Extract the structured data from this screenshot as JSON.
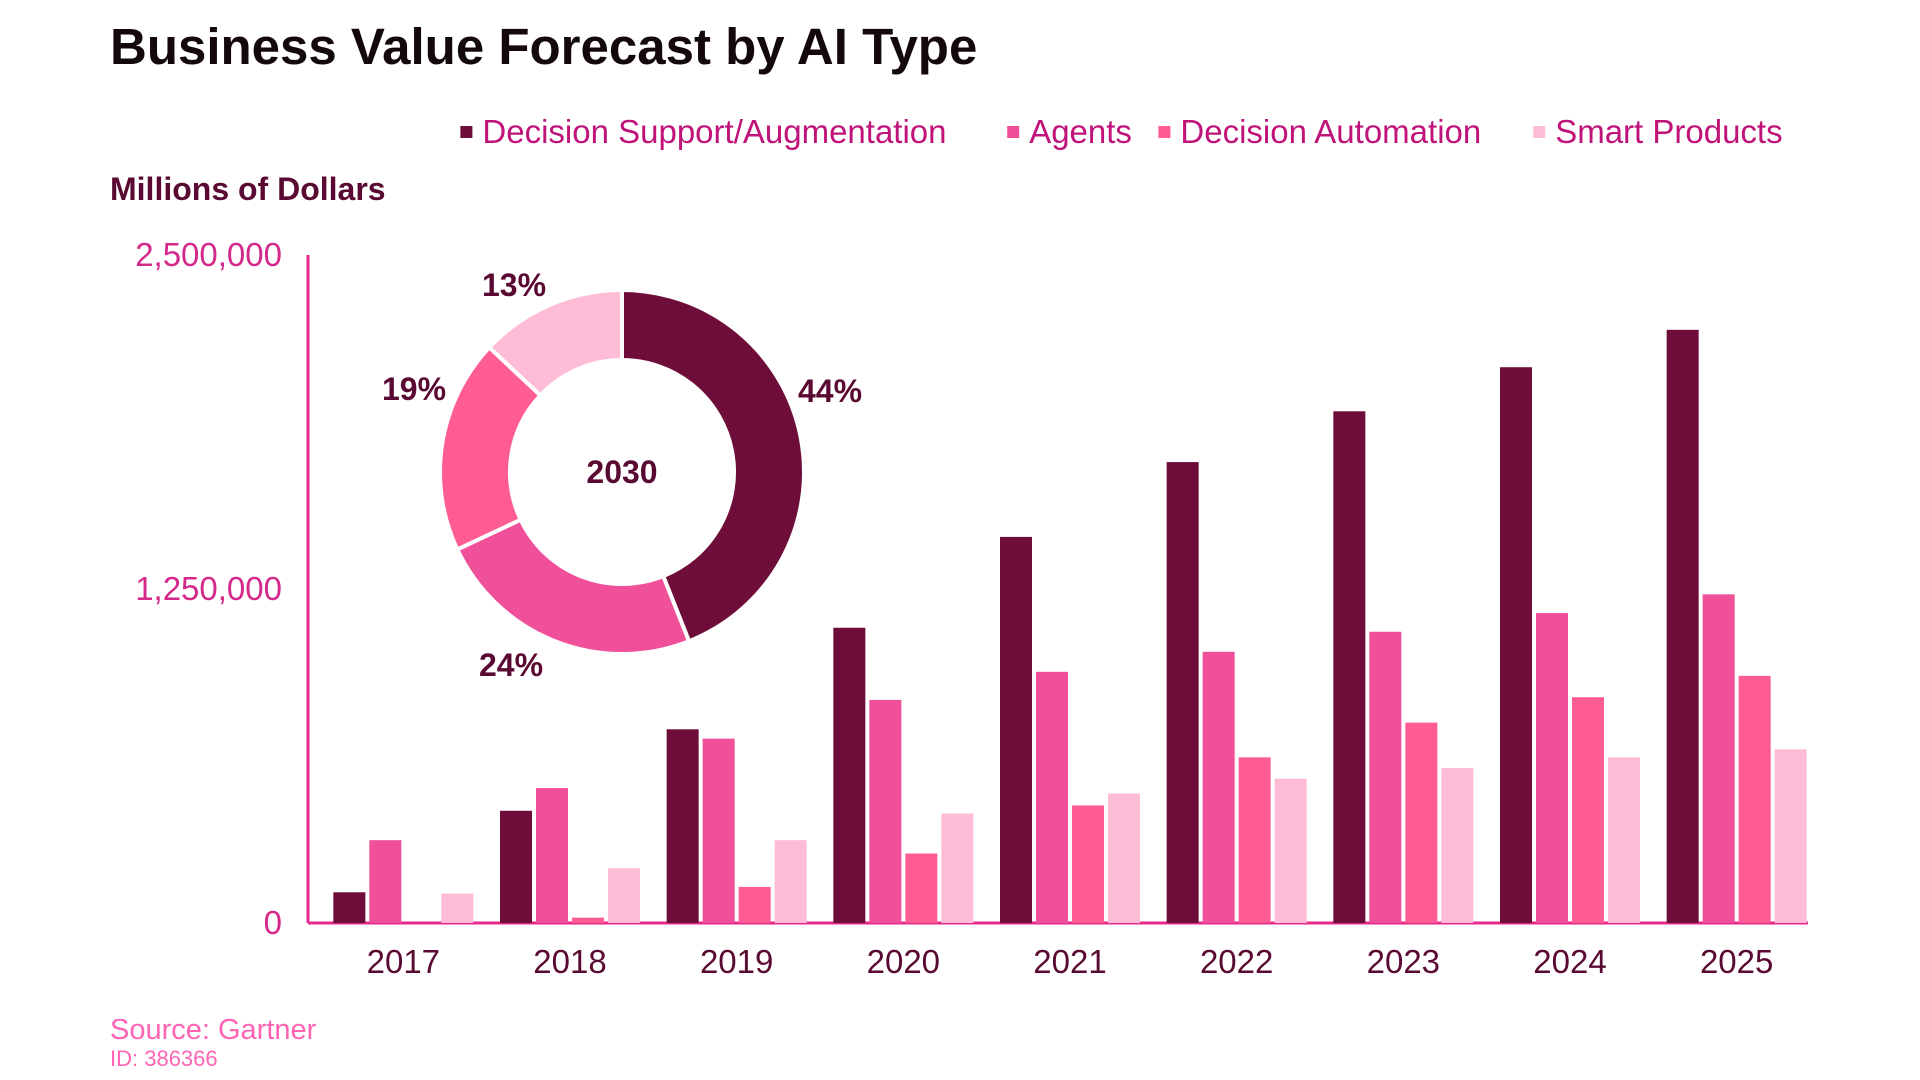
{
  "chart_data": [
    {
      "type": "bar",
      "title": "Business Value Forecast by AI Type",
      "ylabel": "Millions of Dollars",
      "xlabel": "",
      "ylim": [
        0,
        2500000
      ],
      "yticks": [
        {
          "value": 0,
          "label": "0"
        },
        {
          "value": 1250000,
          "label": "1,250,000"
        },
        {
          "value": 2500000,
          "label": "2,500,000"
        }
      ],
      "categories": [
        "2017",
        "2018",
        "2019",
        "2020",
        "2021",
        "2022",
        "2023",
        "2024",
        "2025"
      ],
      "series": [
        {
          "name": "Decision Support/Augmentation",
          "color": "#6e0d3a",
          "values": [
            115000,
            420000,
            725000,
            1105000,
            1445000,
            1725000,
            1915000,
            2080000,
            2220000
          ]
        },
        {
          "name": "Agents",
          "color": "#f0509a",
          "values": [
            310000,
            505000,
            690000,
            835000,
            940000,
            1015000,
            1090000,
            1160000,
            1230000
          ]
        },
        {
          "name": "Decision Automation",
          "color": "#ff5c93",
          "values": [
            0,
            20000,
            135000,
            260000,
            440000,
            620000,
            750000,
            845000,
            925000
          ]
        },
        {
          "name": "Smart Products",
          "color": "#ffbcd7",
          "values": [
            110000,
            205000,
            310000,
            410000,
            485000,
            540000,
            580000,
            620000,
            650000
          ]
        }
      ],
      "legend": "top-right"
    },
    {
      "type": "pie",
      "subtype": "donut",
      "center_label": "2030",
      "slices": [
        {
          "name": "Decision Support/Augmentation",
          "value": 44,
          "label": "44%",
          "color": "#6e0d3a"
        },
        {
          "name": "Agents",
          "value": 24,
          "label": "24%",
          "color": "#f0509a"
        },
        {
          "name": "Decision Automation",
          "value": 19,
          "label": "19%",
          "color": "#ff5c93"
        },
        {
          "name": "Smart Products",
          "value": 13,
          "label": "13%",
          "color": "#ffbcd7"
        }
      ]
    }
  ],
  "footer": {
    "source": "Source: Gartner",
    "id": "ID: 386366"
  },
  "colors": {
    "axis": "#e8288c"
  }
}
